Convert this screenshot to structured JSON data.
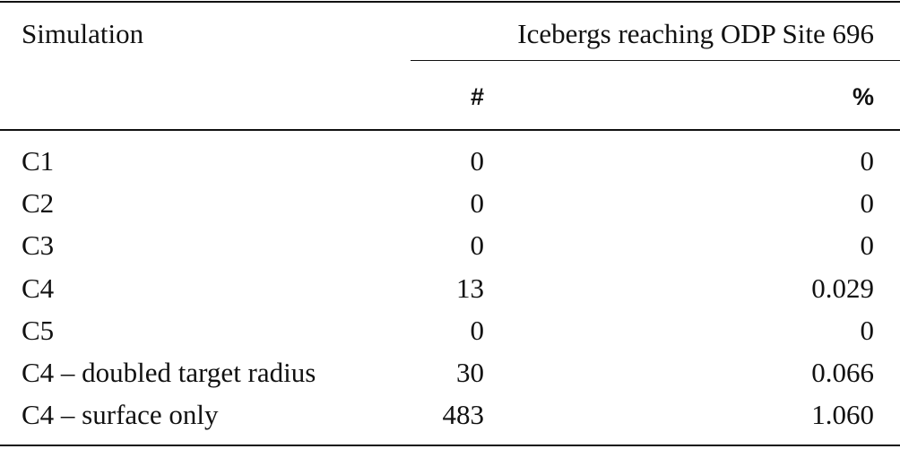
{
  "table": {
    "header": {
      "simulation": "Simulation",
      "group": "Icebergs reaching ODP Site 696",
      "count": "#",
      "percent": "%"
    },
    "rows": [
      [
        "C1",
        "0",
        "0"
      ],
      [
        "C2",
        "0",
        "0"
      ],
      [
        "C3",
        "0",
        "0"
      ],
      [
        "C4",
        "13",
        "0.029"
      ],
      [
        "C5",
        "0",
        "0"
      ],
      [
        "C4 – doubled target radius",
        "30",
        "0.066"
      ],
      [
        "C4 – surface only",
        "483",
        "1.060"
      ]
    ]
  }
}
